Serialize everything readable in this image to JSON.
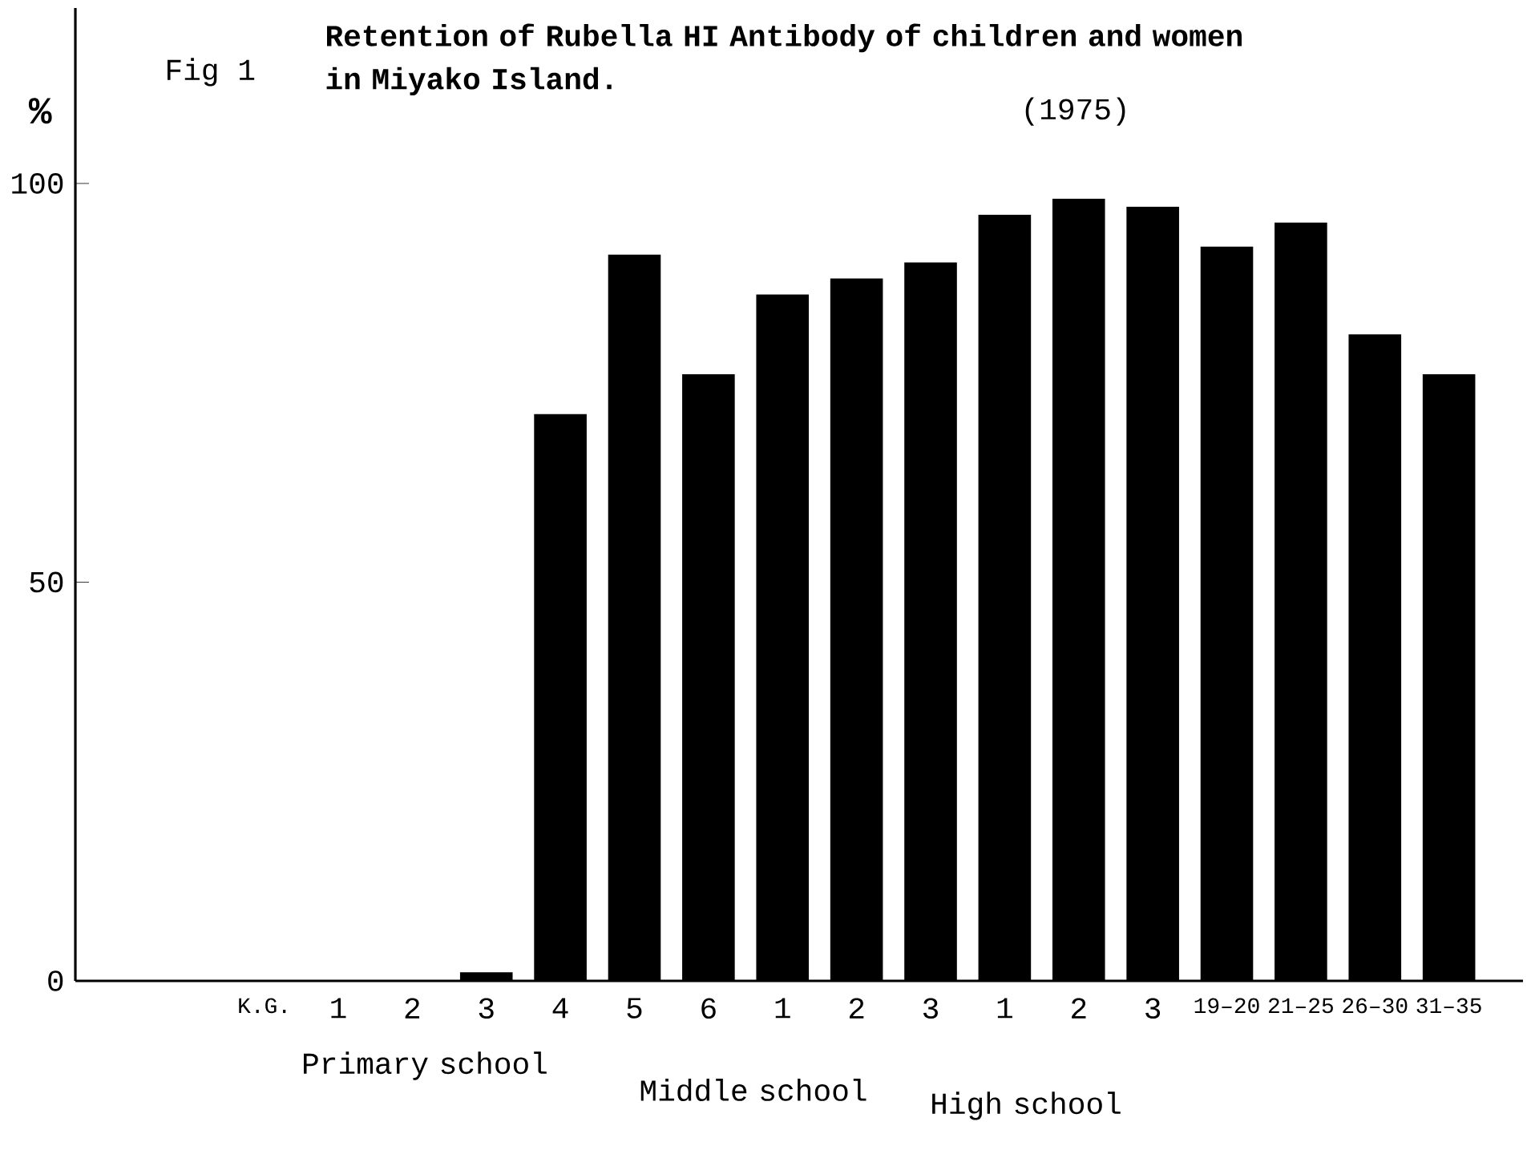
{
  "chart_data": {
    "type": "bar",
    "title": "Retention of Rubella HI Antibody of children and women in Miyako Island.",
    "subtitle": "(1975)",
    "ylabel": "%",
    "categories": [
      "K.G.",
      "1",
      "2",
      "3",
      "4",
      "5",
      "6",
      "1",
      "2",
      "3",
      "1",
      "2",
      "3",
      "19–20",
      "21–25",
      "26–30",
      "31–35"
    ],
    "values": [
      0,
      0,
      0,
      1,
      71,
      91,
      76,
      86,
      88,
      90,
      96,
      98,
      97,
      92,
      95,
      81,
      76
    ],
    "color": "#000000",
    "ylim": [
      0,
      122
    ],
    "yticks": [
      0,
      50,
      100
    ],
    "annotations": [
      "Fig 1",
      "Primary school",
      "Middle school",
      "High school"
    ]
  }
}
